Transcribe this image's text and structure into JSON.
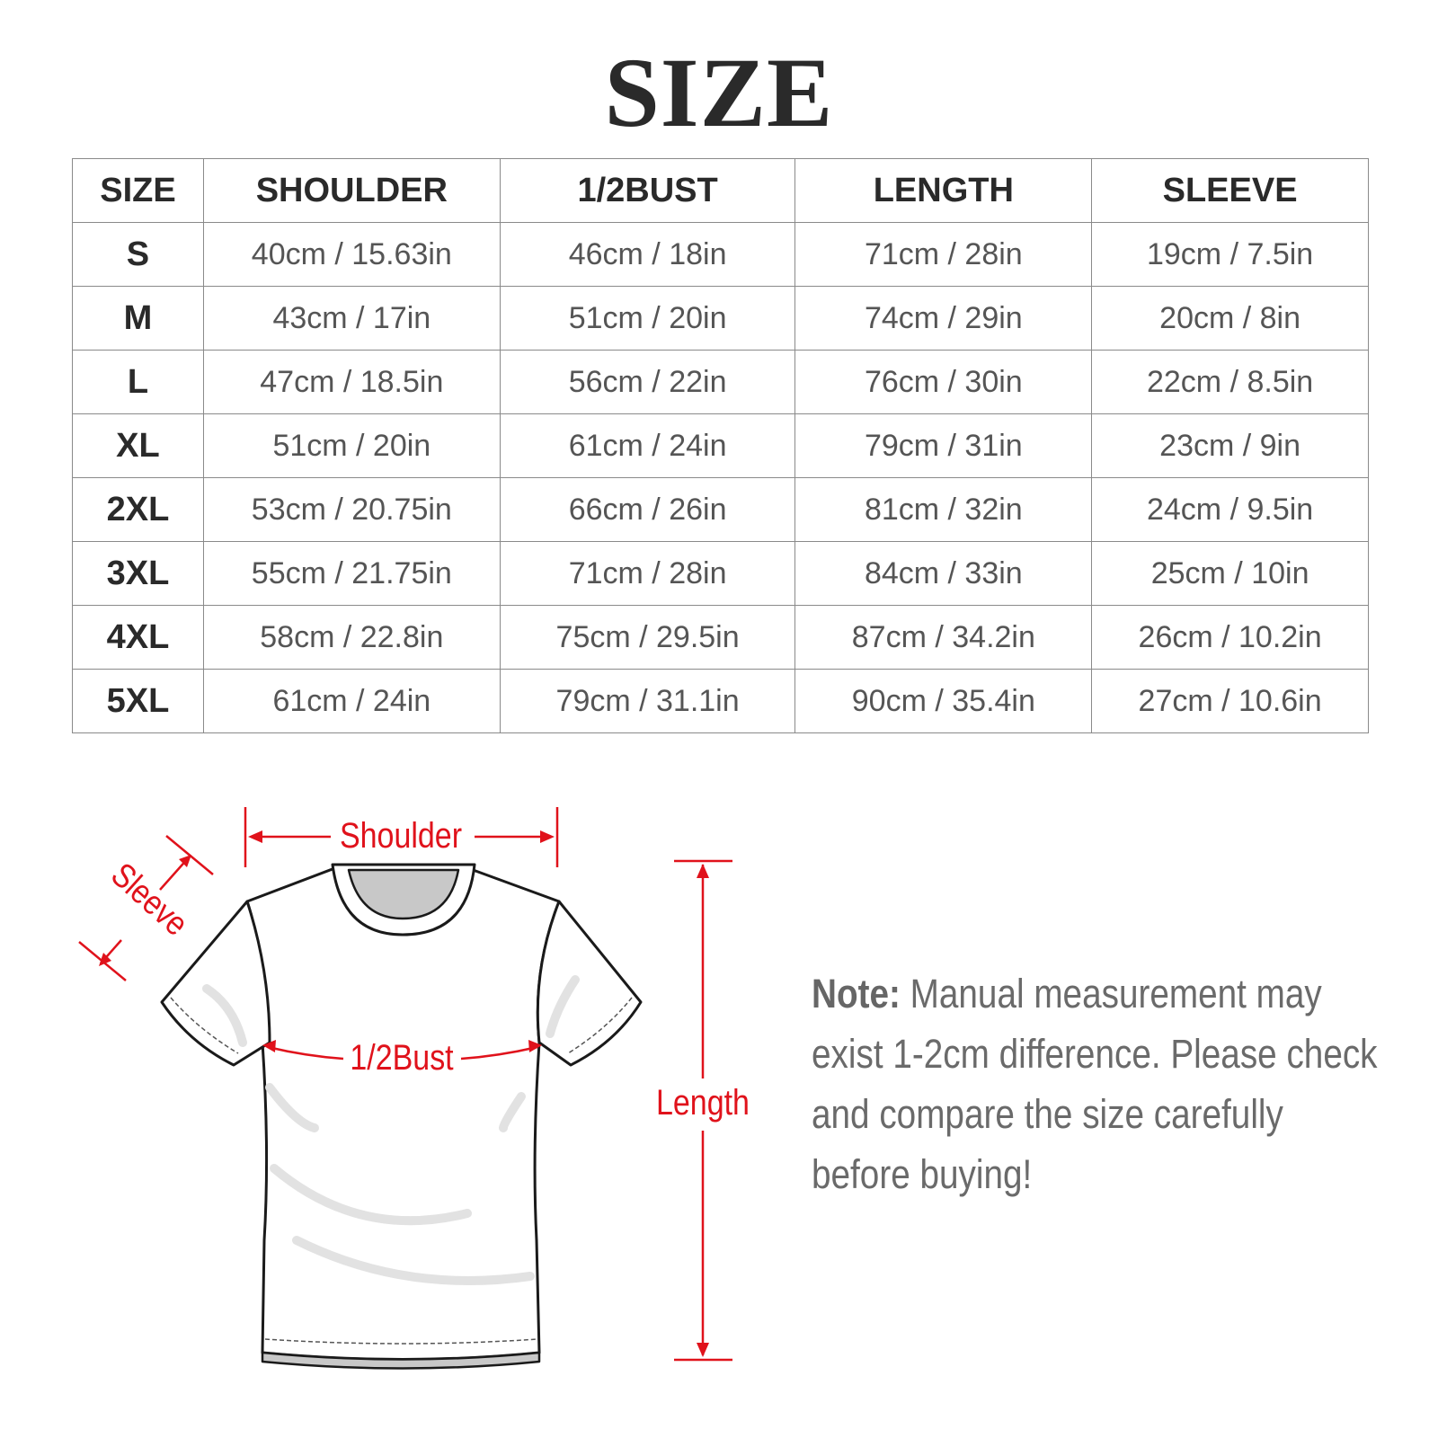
{
  "title": "SIZE",
  "table": {
    "headers": [
      "SIZE",
      "SHOULDER",
      "1/2BUST",
      "LENGTH",
      "SLEEVE"
    ],
    "rows": [
      [
        "S",
        "40cm / 15.63in",
        "46cm / 18in",
        "71cm / 28in",
        "19cm / 7.5in"
      ],
      [
        "M",
        "43cm / 17in",
        "51cm / 20in",
        "74cm / 29in",
        "20cm / 8in"
      ],
      [
        "L",
        "47cm / 18.5in",
        "56cm / 22in",
        "76cm / 30in",
        "22cm / 8.5in"
      ],
      [
        "XL",
        "51cm / 20in",
        "61cm / 24in",
        "79cm / 31in",
        "23cm / 9in"
      ],
      [
        "2XL",
        "53cm / 20.75in",
        "66cm / 26in",
        "81cm / 32in",
        "24cm / 9.5in"
      ],
      [
        "3XL",
        "55cm / 21.75in",
        "71cm / 28in",
        "84cm / 33in",
        "25cm / 10in"
      ],
      [
        "4XL",
        "58cm / 22.8in",
        "75cm / 29.5in",
        "87cm / 34.2in",
        "26cm / 10.2in"
      ],
      [
        "5XL",
        "61cm / 24in",
        "79cm / 31.1in",
        "90cm / 35.4in",
        "27cm / 10.6in"
      ]
    ]
  },
  "diagram": {
    "shoulder_label": "Shoulder",
    "sleeve_label": "Sleeve",
    "bust_label": "1/2Bust",
    "length_label": "Length",
    "accent_color": "#e0121b"
  },
  "note": {
    "label": "Note:",
    "text": " Manual measurement may exist 1-2cm difference. Please check and compare the size carefully before buying!"
  }
}
